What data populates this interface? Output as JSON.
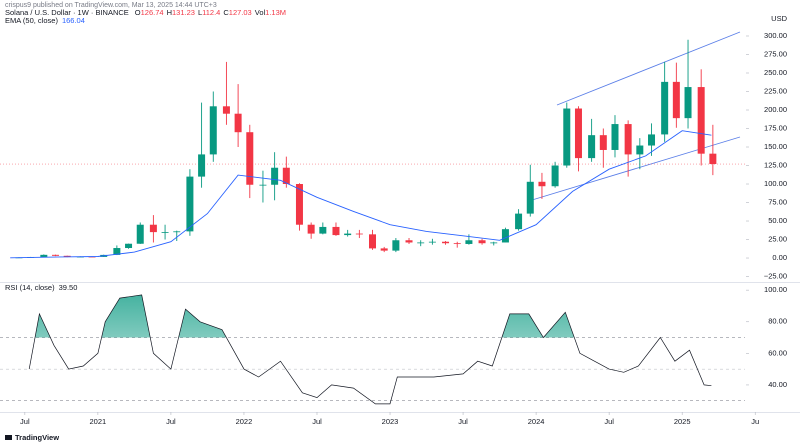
{
  "header": {
    "published": "crispus9 published on TradingView.com, Mar 13, 2025 14:44 UTC+3"
  },
  "footer": {
    "brand": "TradingView"
  },
  "chart_data": [
    {
      "type": "candlestick",
      "title": "Solana / U.S. Dollar · 1W · BINANCE",
      "header_values": [
        {
          "key": "O",
          "value": 126.74
        },
        {
          "key": "H",
          "value": 131.23
        },
        {
          "key": "L",
          "value": 112.4
        },
        {
          "key": "C",
          "value": 127.03
        },
        {
          "key": "Vol",
          "value": 1130000,
          "label": "1.13M"
        }
      ],
      "currency": "USD",
      "x": [
        2020.46,
        2020.54,
        2020.63,
        2020.71,
        2020.79,
        2020.88,
        2020.96,
        2021.04,
        2021.13,
        2021.21,
        2021.29,
        2021.38,
        2021.46,
        2021.54,
        2021.63,
        2021.71,
        2021.79,
        2021.88,
        2021.96,
        2022.04,
        2022.13,
        2022.21,
        2022.29,
        2022.38,
        2022.46,
        2022.54,
        2022.63,
        2022.71,
        2022.79,
        2022.88,
        2022.96,
        2023.04,
        2023.13,
        2023.21,
        2023.29,
        2023.38,
        2023.46,
        2023.54,
        2023.63,
        2023.71,
        2023.79,
        2023.88,
        2023.96,
        2024.04,
        2024.13,
        2024.21,
        2024.29,
        2024.38,
        2024.46,
        2024.54,
        2024.63,
        2024.71,
        2024.79,
        2024.88,
        2024.96,
        2025.04,
        2025.13,
        2025.21
      ],
      "open": [
        0.6,
        0.8,
        1.4,
        4.3,
        3.0,
        1.8,
        1.9,
        1.5,
        4.2,
        13.5,
        19.3,
        45,
        35,
        35,
        36,
        110,
        140,
        205,
        195,
        170,
        99,
        99,
        122,
        100,
        45,
        33,
        42,
        31,
        33,
        32,
        13,
        10,
        24,
        21,
        21,
        22,
        20,
        19,
        24,
        20,
        21,
        39,
        60,
        103,
        97,
        125,
        202,
        135,
        166,
        146,
        181,
        140,
        152,
        167,
        238,
        189,
        231,
        141
      ],
      "high": [
        1.0,
        1.5,
        4.9,
        4.6,
        3.2,
        2.3,
        2.2,
        4.5,
        17,
        19.5,
        48,
        58,
        45,
        37,
        120,
        210,
        225,
        265,
        235,
        180,
        118,
        143,
        137,
        101,
        48,
        48,
        48,
        38,
        38,
        38,
        15,
        27,
        27,
        24,
        26,
        23,
        22,
        32,
        26,
        22,
        41,
        66,
        126,
        115,
        130,
        210,
        205,
        188,
        175,
        193,
        186,
        162,
        182,
        265,
        264,
        295,
        255,
        180
      ],
      "low": [
        0.5,
        0.7,
        1.3,
        2.5,
        1.2,
        1.5,
        1.4,
        1.4,
        4.0,
        12.5,
        19,
        21,
        25,
        23,
        30,
        95,
        130,
        180,
        150,
        81,
        75,
        78,
        95,
        37,
        26,
        32,
        30,
        29,
        27,
        11,
        8,
        8,
        19,
        16,
        18,
        18,
        14,
        18,
        18,
        17,
        21,
        37,
        56,
        80,
        95,
        122,
        117,
        130,
        122,
        136,
        110,
        120,
        138,
        157,
        176,
        175,
        125,
        112
      ],
      "close": [
        0.8,
        1.4,
        4.3,
        3.0,
        1.8,
        1.9,
        1.5,
        4.2,
        13.5,
        19.3,
        45,
        35,
        35,
        36,
        110,
        140,
        205,
        195,
        170,
        99,
        99,
        122,
        100,
        45,
        33,
        42,
        31,
        33,
        32,
        13,
        10,
        24,
        21,
        21,
        22,
        20,
        19,
        24,
        20,
        21,
        39,
        60,
        103,
        97,
        125,
        202,
        135,
        166,
        146,
        181,
        140,
        152,
        167,
        238,
        189,
        231,
        141,
        127
      ],
      "up_color": "#089981",
      "down_color": "#f23645",
      "ema": {
        "name": "EMA (50, close)",
        "value": 166.04,
        "value_label": "166.04",
        "color": "#2962ff",
        "x": [
          2020.4,
          2020.75,
          2021.0,
          2021.25,
          2021.5,
          2021.75,
          2021.96,
          2022.25,
          2022.5,
          2022.75,
          2023.0,
          2023.25,
          2023.5,
          2023.75,
          2024.0,
          2024.25,
          2024.5,
          2024.75,
          2025.0,
          2025.2
        ],
        "values": [
          0.3,
          1.5,
          2,
          8,
          22,
          60,
          112,
          105,
          82,
          63,
          45,
          36,
          30,
          24,
          45,
          90,
          120,
          138,
          172,
          166
        ]
      },
      "xlim": [
        2020.33,
        2025.43
      ],
      "ylim": [
        -32.4,
        310.8
      ],
      "xticks": [
        {
          "value": 2020.5,
          "label": "Jul"
        },
        {
          "value": 2021,
          "label": "2021"
        },
        {
          "value": 2021.5,
          "label": "Jul"
        },
        {
          "value": 2022,
          "label": "2022"
        },
        {
          "value": 2022.5,
          "label": "Jul"
        },
        {
          "value": 2023,
          "label": "2023"
        },
        {
          "value": 2023.5,
          "label": "Jul"
        },
        {
          "value": 2024,
          "label": "2024"
        },
        {
          "value": 2024.5,
          "label": "Jul"
        },
        {
          "value": 2025,
          "label": "2025"
        },
        {
          "value": 2025.5,
          "label": "Ju"
        }
      ],
      "yticks": [
        {
          "value": -25,
          "label": "−25.00"
        },
        {
          "value": 0,
          "label": "0.00"
        },
        {
          "value": 25,
          "label": "25.00"
        },
        {
          "value": 50,
          "label": "50.00"
        },
        {
          "value": 75,
          "label": "75.00"
        },
        {
          "value": 100,
          "label": "100.00"
        },
        {
          "value": 125,
          "label": "125.00"
        },
        {
          "value": 150,
          "label": "150.00"
        },
        {
          "value": 175,
          "label": "175.00"
        },
        {
          "value": 200,
          "label": "200.00"
        },
        {
          "value": 225,
          "label": "225.00"
        },
        {
          "value": 250,
          "label": "250.00"
        },
        {
          "value": 275,
          "label": "275.00"
        },
        {
          "value": 300,
          "label": "300.00"
        }
      ]
    },
    {
      "type": "line",
      "name": "RSI (14, close)",
      "value": 39.5,
      "value_label": "39.50",
      "color": "#131722",
      "fill_color": "#089981",
      "x": [
        2020.53,
        2020.6,
        2020.7,
        2020.8,
        2020.9,
        2021.0,
        2021.05,
        2021.15,
        2021.3,
        2021.38,
        2021.5,
        2021.6,
        2021.7,
        2021.85,
        2022.0,
        2022.1,
        2022.25,
        2022.4,
        2022.5,
        2022.6,
        2022.75,
        2022.9,
        2023.0,
        2023.05,
        2023.3,
        2023.5,
        2023.6,
        2023.7,
        2023.82,
        2023.95,
        2024.05,
        2024.2,
        2024.3,
        2024.4,
        2024.5,
        2024.6,
        2024.7,
        2024.85,
        2024.95,
        2025.05,
        2025.15,
        2025.2
      ],
      "values": [
        50,
        85,
        65,
        50,
        52,
        60,
        80,
        95,
        97,
        60,
        50,
        88,
        80,
        75,
        50,
        45,
        55,
        35,
        32,
        40,
        38,
        28,
        28,
        45,
        45,
        47,
        55,
        52,
        85,
        85,
        70,
        86,
        60,
        55,
        50,
        48,
        52,
        70,
        55,
        62,
        40,
        39.5
      ],
      "levels": [
        30,
        50,
        70
      ],
      "xlim": [
        2020.33,
        2025.43
      ],
      "ylim": [
        27.3,
        103.9
      ],
      "yticks": [
        {
          "value": 40,
          "label": "40.00"
        },
        {
          "value": 60,
          "label": "60.00"
        },
        {
          "value": 80,
          "label": "80.00"
        },
        {
          "value": 100,
          "label": "100.00"
        }
      ]
    }
  ]
}
